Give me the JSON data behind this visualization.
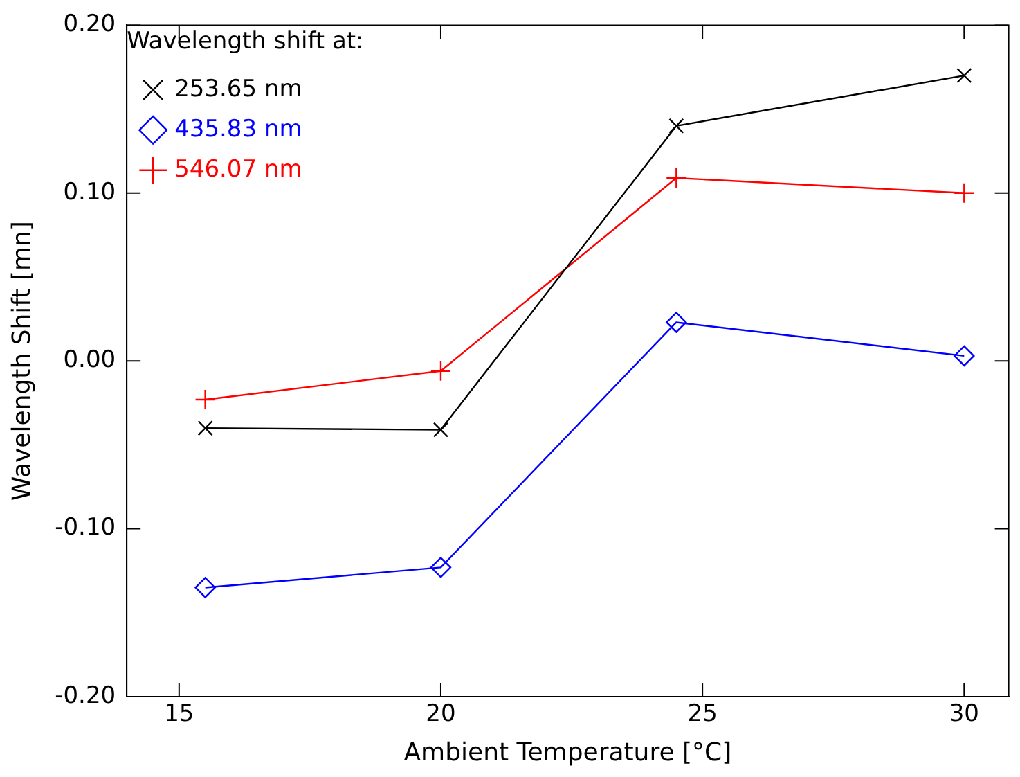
{
  "chart_data": {
    "type": "line",
    "xlabel": "Ambient Temperature [°C]",
    "ylabel": "Wavelength Shift [mn]",
    "legend_title": "Wavelength shift at:",
    "legend": "top left",
    "grid": false,
    "x": [
      15.5,
      20,
      24.5,
      30
    ],
    "xlim": [
      14,
      30.85
    ],
    "xticks": [
      15,
      20,
      25,
      30
    ],
    "ylim": [
      -0.2,
      0.2
    ],
    "yticks": [
      {
        "value": -0.2,
        "label": "-0.20"
      },
      {
        "value": -0.1,
        "label": "-0.10"
      },
      {
        "value": 0,
        "label": "0.00"
      },
      {
        "value": 0.1,
        "label": "0.10"
      },
      {
        "value": 0.2,
        "label": "0.20"
      }
    ],
    "series": [
      {
        "name": "253.65 nm",
        "color": "#000000",
        "marker": "cross",
        "values": [
          -0.04,
          -0.041,
          0.14,
          0.17
        ]
      },
      {
        "name": "435.83 nm",
        "color": "#0000ff",
        "marker": "diamond",
        "values": [
          -0.135,
          -0.123,
          0.023,
          0.003
        ]
      },
      {
        "name": "546.07 nm",
        "color": "#ff0000",
        "marker": "plus",
        "values": [
          -0.023,
          -0.006,
          0.109,
          0.1
        ]
      }
    ]
  }
}
